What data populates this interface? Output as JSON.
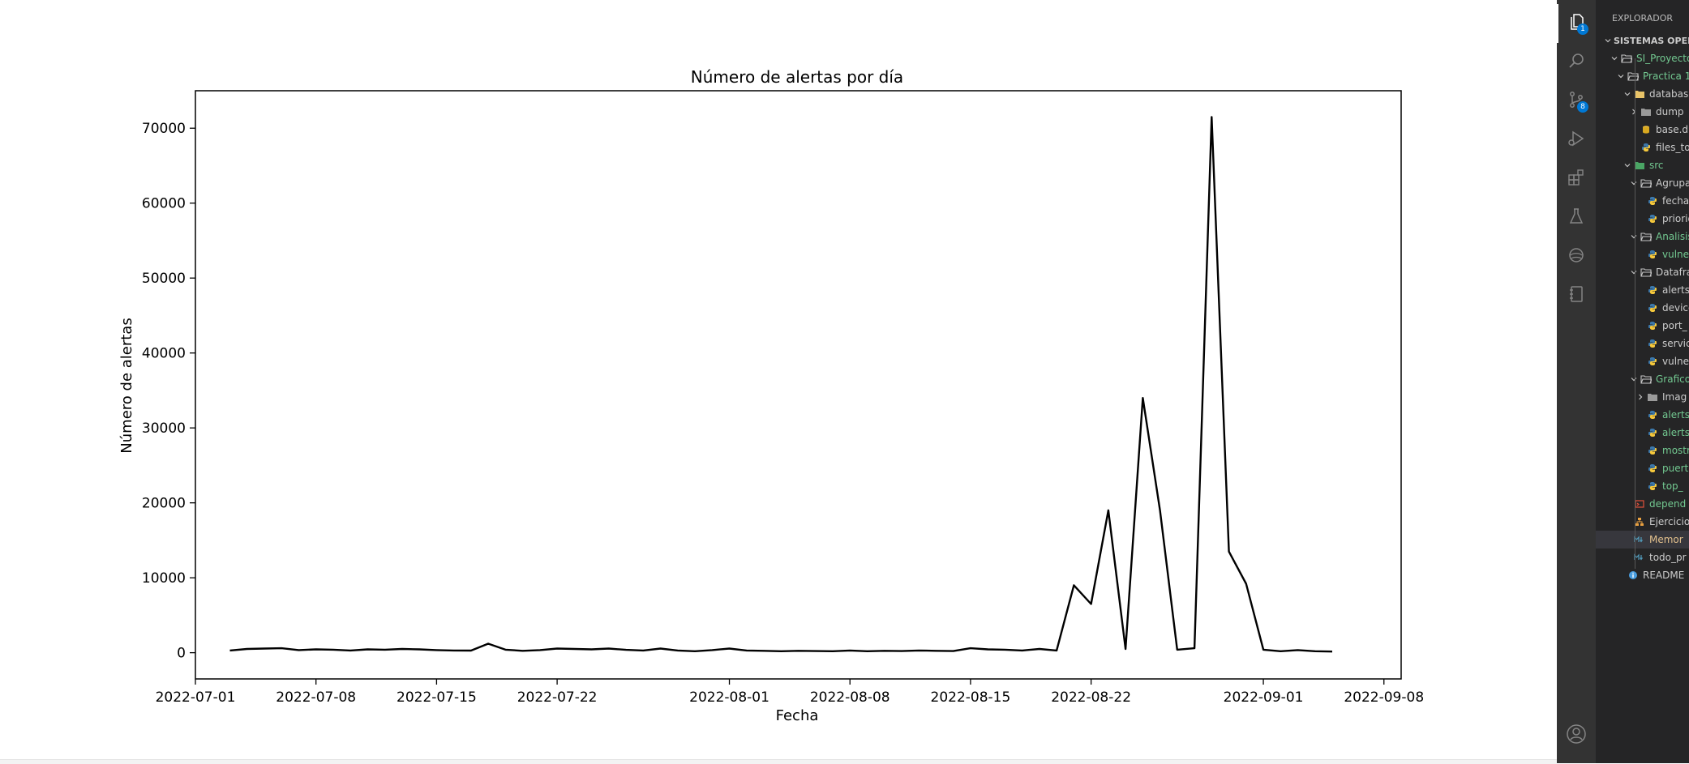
{
  "chart_data": {
    "type": "line",
    "title": "Número de alertas por día",
    "xlabel": "Fecha",
    "ylabel": "Número de alertas",
    "xlim": [
      "2022-07-01",
      "2022-09-09"
    ],
    "ylim": [
      -3500,
      75000
    ],
    "xticks": [
      "2022-07-01",
      "2022-07-08",
      "2022-07-15",
      "2022-07-22",
      "2022-08-01",
      "2022-08-08",
      "2022-08-15",
      "2022-08-22",
      "2022-09-01",
      "2022-09-08"
    ],
    "yticks": [
      0,
      10000,
      20000,
      30000,
      40000,
      50000,
      60000,
      70000
    ],
    "ytick_labels": [
      "0",
      "10000",
      "20000",
      "30000",
      "40000",
      "50000",
      "60000",
      "70000"
    ],
    "grid": false,
    "legend": "none",
    "line_color": "#000000",
    "series": [
      {
        "x": [
          "2022-07-03",
          "2022-07-04",
          "2022-07-05",
          "2022-07-06",
          "2022-07-07",
          "2022-07-08",
          "2022-07-09",
          "2022-07-10",
          "2022-07-11",
          "2022-07-12",
          "2022-07-13",
          "2022-07-14",
          "2022-07-15",
          "2022-07-16",
          "2022-07-17",
          "2022-07-18",
          "2022-07-19",
          "2022-07-20",
          "2022-07-21",
          "2022-07-22",
          "2022-07-23",
          "2022-07-24",
          "2022-07-25",
          "2022-07-26",
          "2022-07-27",
          "2022-07-28",
          "2022-07-29",
          "2022-07-30",
          "2022-07-31",
          "2022-08-01",
          "2022-08-02",
          "2022-08-03",
          "2022-08-04",
          "2022-08-05",
          "2022-08-06",
          "2022-08-07",
          "2022-08-08",
          "2022-08-09",
          "2022-08-10",
          "2022-08-11",
          "2022-08-12",
          "2022-08-13",
          "2022-08-14",
          "2022-08-15",
          "2022-08-16",
          "2022-08-17",
          "2022-08-18",
          "2022-08-19",
          "2022-08-20",
          "2022-08-21",
          "2022-08-22",
          "2022-08-23",
          "2022-08-24",
          "2022-08-25",
          "2022-08-26",
          "2022-08-27",
          "2022-08-28",
          "2022-08-29",
          "2022-08-30",
          "2022-08-31",
          "2022-09-01",
          "2022-09-02",
          "2022-09-03",
          "2022-09-04",
          "2022-09-05"
        ],
        "y": [
          300,
          500,
          550,
          600,
          350,
          450,
          400,
          300,
          450,
          400,
          500,
          450,
          350,
          300,
          280,
          1200,
          400,
          250,
          350,
          550,
          500,
          450,
          550,
          380,
          300,
          550,
          300,
          200,
          350,
          550,
          300,
          250,
          200,
          250,
          220,
          200,
          300,
          200,
          250,
          220,
          300,
          250,
          220,
          600,
          450,
          400,
          300,
          500,
          300,
          9000,
          6500,
          19000,
          500,
          34000,
          19000,
          400,
          600,
          71500,
          13500,
          9200,
          400,
          200,
          350,
          200,
          150
        ]
      }
    ]
  },
  "sidebar": {
    "title": "EXPLORADOR",
    "items": [
      {
        "label": "SISTEMAS OPERATIVOS",
        "chevron": "down",
        "icon": "",
        "color": "#cccccc",
        "bold": true
      },
      {
        "label": "SI_Proyecto",
        "chevron": "down",
        "icon": "folder-open",
        "color": "#73c991"
      },
      {
        "label": "Practica 1",
        "chevron": "down",
        "icon": "folder-open",
        "color": "#73c991"
      },
      {
        "label": "database",
        "chevron": "down",
        "icon": "folder-yellow",
        "color": "#cccccc"
      },
      {
        "label": "dump",
        "chevron": "right",
        "icon": "folder-gray",
        "color": "#cccccc"
      },
      {
        "label": "base.db",
        "chevron": "",
        "icon": "database",
        "color": "#cccccc"
      },
      {
        "label": "files_to",
        "chevron": "",
        "icon": "python",
        "color": "#cccccc"
      },
      {
        "label": "src",
        "chevron": "down",
        "icon": "folder-green",
        "color": "#73c991"
      },
      {
        "label": "Agrupa",
        "chevron": "down",
        "icon": "folder-open",
        "color": "#cccccc"
      },
      {
        "label": "fechas",
        "chevron": "",
        "icon": "python",
        "color": "#cccccc"
      },
      {
        "label": "priorid",
        "chevron": "",
        "icon": "python",
        "color": "#cccccc"
      },
      {
        "label": "Analisis",
        "chevron": "down",
        "icon": "folder-open",
        "color": "#73c991"
      },
      {
        "label": "vulner",
        "chevron": "",
        "icon": "python",
        "color": "#73c991"
      },
      {
        "label": "Datafra",
        "chevron": "down",
        "icon": "folder-open",
        "color": "#cccccc"
      },
      {
        "label": "alerts_",
        "chevron": "",
        "icon": "python",
        "color": "#cccccc"
      },
      {
        "label": "device",
        "chevron": "",
        "icon": "python",
        "color": "#cccccc"
      },
      {
        "label": "port_",
        "chevron": "",
        "icon": "python",
        "color": "#cccccc"
      },
      {
        "label": "servic",
        "chevron": "",
        "icon": "python",
        "color": "#cccccc"
      },
      {
        "label": "vulner",
        "chevron": "",
        "icon": "python",
        "color": "#cccccc"
      },
      {
        "label": "Grafico",
        "chevron": "down",
        "icon": "folder-open",
        "color": "#73c991"
      },
      {
        "label": "Imag",
        "chevron": "right",
        "icon": "folder-gray",
        "color": "#cccccc"
      },
      {
        "label": "alerts",
        "chevron": "",
        "icon": "python",
        "color": "#73c991"
      },
      {
        "label": "alerts",
        "chevron": "",
        "icon": "python",
        "color": "#73c991"
      },
      {
        "label": "mostr",
        "chevron": "",
        "icon": "python",
        "color": "#73c991"
      },
      {
        "label": "puert",
        "chevron": "",
        "icon": "python",
        "color": "#73c991"
      },
      {
        "label": "top_",
        "chevron": "",
        "icon": "python",
        "color": "#73c991"
      },
      {
        "label": "depend",
        "chevron": "",
        "icon": "shell",
        "color": "#73c991"
      },
      {
        "label": "Ejercicio",
        "chevron": "",
        "icon": "tree",
        "color": "#cccccc"
      },
      {
        "label": "Memor",
        "chevron": "",
        "icon": "markdown",
        "color": "#e2c08d",
        "selected": true
      },
      {
        "label": "todo_pr",
        "chevron": "",
        "icon": "markdown",
        "color": "#cccccc"
      },
      {
        "label": "README",
        "chevron": "",
        "icon": "info",
        "color": "#cccccc"
      }
    ]
  },
  "activity_bar": {
    "items": [
      {
        "name": "explorer-icon",
        "badge": "1",
        "active": true
      },
      {
        "name": "search-icon",
        "badge": ""
      },
      {
        "name": "source-control-icon",
        "badge": "8"
      },
      {
        "name": "run-debug-icon",
        "badge": ""
      },
      {
        "name": "extensions-icon",
        "badge": ""
      },
      {
        "name": "testing-icon",
        "badge": ""
      },
      {
        "name": "remote-icon",
        "badge": ""
      },
      {
        "name": "notebook-icon",
        "badge": ""
      }
    ],
    "bottom": [
      {
        "name": "account-icon"
      }
    ]
  }
}
